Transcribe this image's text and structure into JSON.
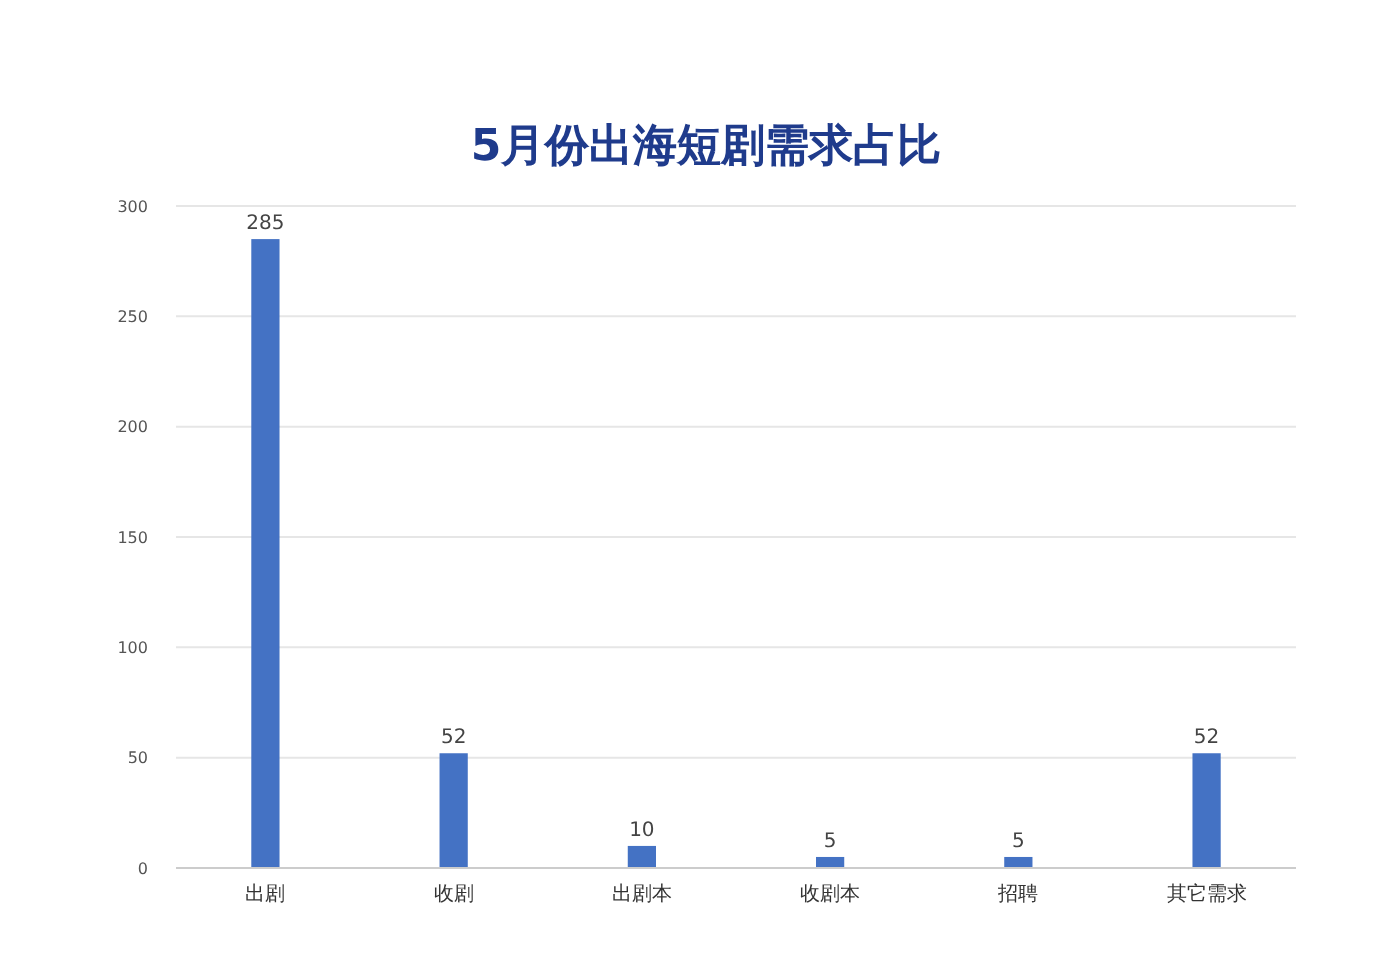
{
  "chart_data": {
    "type": "bar",
    "title": "5月份出海短剧需求占比",
    "categories": [
      "出剧",
      "收剧",
      "出剧本",
      "收剧本",
      "招聘",
      "其它需求"
    ],
    "values": [
      285,
      52,
      10,
      5,
      5,
      52
    ],
    "color": "#4472c4",
    "ylim": [
      0,
      300
    ],
    "yticks": [
      0,
      50,
      100,
      150,
      200,
      250,
      300
    ],
    "grid": "y",
    "data_labels": true
  }
}
